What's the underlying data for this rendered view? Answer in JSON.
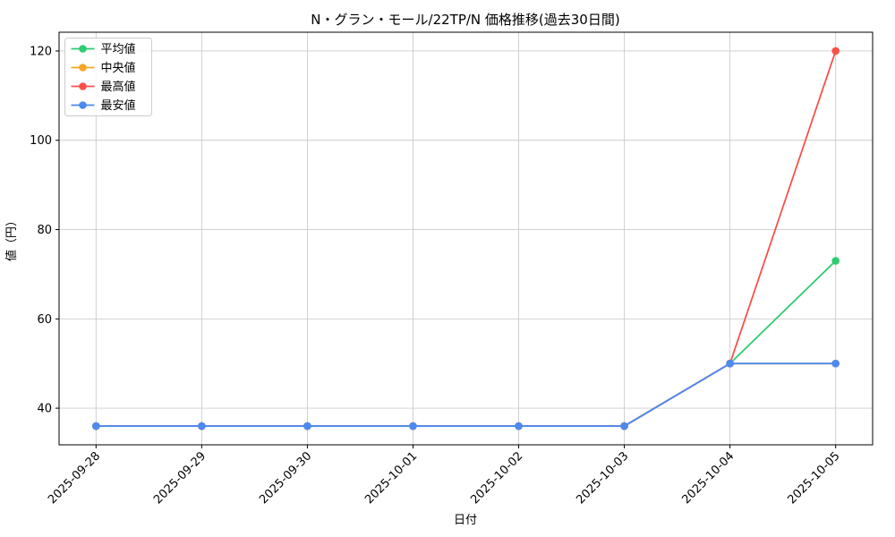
{
  "page": {
    "background": "#ffffff"
  },
  "chart_data": {
    "type": "line",
    "title": "N・グラン・モール/22TP/N 価格推移(過去30日間)",
    "xlabel": "日付",
    "ylabel": "値（円）",
    "categories": [
      "2025-09-28",
      "2025-09-29",
      "2025-09-30",
      "2025-10-01",
      "2025-10-02",
      "2025-10-03",
      "2025-10-04",
      "2025-10-05"
    ],
    "series": [
      {
        "key": "average",
        "name": "平均値",
        "color": "#2ecc71",
        "values": [
          36,
          36,
          36,
          36,
          36,
          36,
          50,
          73
        ]
      },
      {
        "key": "median",
        "name": "中央値",
        "color": "#f5a623",
        "values": [
          36,
          36,
          36,
          36,
          36,
          36,
          50,
          50
        ]
      },
      {
        "key": "max",
        "name": "最高値",
        "color": "#f8514a",
        "values": [
          36,
          36,
          36,
          36,
          36,
          36,
          50,
          120
        ]
      },
      {
        "key": "min",
        "name": "最安値",
        "color": "#4b8af0",
        "values": [
          36,
          36,
          36,
          36,
          36,
          36,
          50,
          50
        ]
      }
    ],
    "yticks": [
      40,
      60,
      80,
      100,
      120
    ],
    "ylim": [
      31.8,
      124.2
    ],
    "grid": true,
    "legend_position": "upper-left",
    "grid_color": "#cbcbcb",
    "axis_color": "#000000",
    "text_color": "#000000",
    "legend_border_color": "#cccccc",
    "legend_background": "#ffffff"
  }
}
